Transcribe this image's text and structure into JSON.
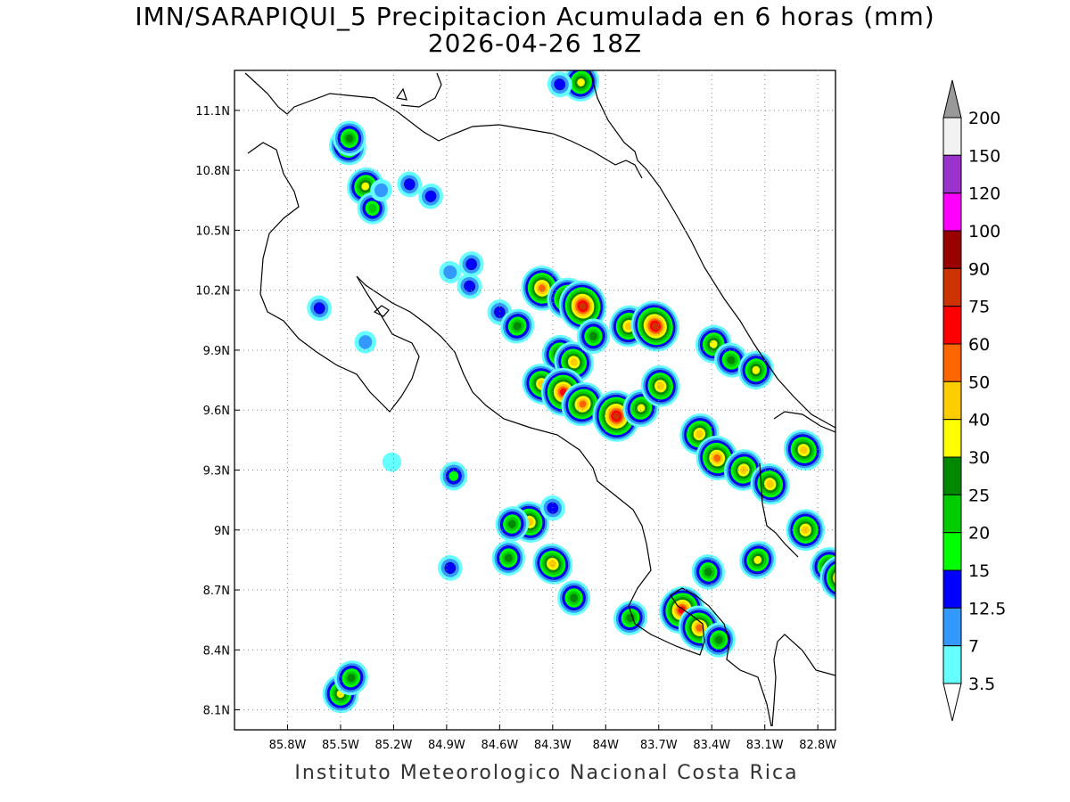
{
  "title_line1": "IMN/SARAPIQUI_5 Precipitacion Acumulada en 6 horas (mm)",
  "title_line2": "2026-04-26 18Z",
  "footer": "Instituto Meteorologico Nacional Costa Rica",
  "map": {
    "lon_range": [
      -86.1,
      -82.7
    ],
    "lat_range": [
      8.0,
      11.3
    ],
    "lon_ticks": [
      {
        "value": -85.8,
        "label": "85.8W"
      },
      {
        "value": -85.5,
        "label": "85.5W"
      },
      {
        "value": -85.2,
        "label": "85.2W"
      },
      {
        "value": -84.9,
        "label": "84.9W"
      },
      {
        "value": -84.6,
        "label": "84.6W"
      },
      {
        "value": -84.3,
        "label": "84.3W"
      },
      {
        "value": -84.0,
        "label": "84W"
      },
      {
        "value": -83.7,
        "label": "83.7W"
      },
      {
        "value": -83.4,
        "label": "83.4W"
      },
      {
        "value": -83.1,
        "label": "83.1W"
      },
      {
        "value": -82.8,
        "label": "82.8W"
      }
    ],
    "lat_ticks": [
      {
        "value": 8.1,
        "label": "8.1N"
      },
      {
        "value": 8.4,
        "label": "8.4N"
      },
      {
        "value": 8.7,
        "label": "8.7N"
      },
      {
        "value": 9.0,
        "label": "9N"
      },
      {
        "value": 9.3,
        "label": "9.3N"
      },
      {
        "value": 9.6,
        "label": "9.6N"
      },
      {
        "value": 9.9,
        "label": "9.9N"
      },
      {
        "value": 10.2,
        "label": "10.2N"
      },
      {
        "value": 10.5,
        "label": "10.5N"
      },
      {
        "value": 10.8,
        "label": "10.8N"
      },
      {
        "value": 11.1,
        "label": "11.1N"
      }
    ],
    "grid": "dotted"
  },
  "colorbar": {
    "levels": [
      "3.5",
      "7",
      "12.5",
      "15",
      "20",
      "25",
      "30",
      "40",
      "50",
      "60",
      "75",
      "90",
      "100",
      "120",
      "150",
      "200"
    ],
    "colors": [
      "#66ffff",
      "#3399ff",
      "#0000ff",
      "#00ff00",
      "#00cc00",
      "#008800",
      "#ffff00",
      "#ffcc00",
      "#ff6600",
      "#ff0000",
      "#cc3300",
      "#990000",
      "#ff00ff",
      "#9933cc",
      "#f2f2f2",
      "#999999"
    ]
  },
  "chart_data": {
    "type": "heatmap",
    "title": "IMN/SARAPIQUI_5 Precipitacion Acumulada en 6 horas (mm)",
    "subtitle": "2026-04-26 18Z",
    "units": "mm",
    "xlim": [
      -86.1,
      -82.7
    ],
    "ylim": [
      8.0,
      11.3
    ],
    "cells": [
      {
        "lon": -85.46,
        "lat": 10.92,
        "mm": 30
      },
      {
        "lon": -85.45,
        "lat": 10.96,
        "mm": 25
      },
      {
        "lon": -85.36,
        "lat": 10.72,
        "mm": 30
      },
      {
        "lon": -85.32,
        "lat": 10.61,
        "mm": 20
      },
      {
        "lon": -85.27,
        "lat": 10.7,
        "mm": 7
      },
      {
        "lon": -85.11,
        "lat": 10.73,
        "mm": 12.5
      },
      {
        "lon": -84.99,
        "lat": 10.67,
        "mm": 12.5
      },
      {
        "lon": -85.62,
        "lat": 10.11,
        "mm": 12.5
      },
      {
        "lon": -85.36,
        "lat": 9.94,
        "mm": 7
      },
      {
        "lon": -85.21,
        "lat": 9.34,
        "mm": 3.5
      },
      {
        "lon": -84.86,
        "lat": 9.27,
        "mm": 15
      },
      {
        "lon": -84.88,
        "lat": 10.29,
        "mm": 7
      },
      {
        "lon": -84.76,
        "lat": 10.33,
        "mm": 12.5
      },
      {
        "lon": -84.77,
        "lat": 10.22,
        "mm": 12.5
      },
      {
        "lon": -84.6,
        "lat": 10.09,
        "mm": 12.5
      },
      {
        "lon": -84.5,
        "lat": 10.02,
        "mm": 25
      },
      {
        "lon": -84.36,
        "lat": 10.21,
        "mm": 50
      },
      {
        "lon": -84.22,
        "lat": 10.16,
        "mm": 40
      },
      {
        "lon": -84.13,
        "lat": 10.12,
        "mm": 75
      },
      {
        "lon": -84.14,
        "lat": 11.24,
        "mm": 30
      },
      {
        "lon": -84.26,
        "lat": 11.23,
        "mm": 12.5
      },
      {
        "lon": -83.87,
        "lat": 10.02,
        "mm": 40
      },
      {
        "lon": -83.72,
        "lat": 10.02,
        "mm": 75
      },
      {
        "lon": -84.26,
        "lat": 9.88,
        "mm": 30
      },
      {
        "lon": -84.18,
        "lat": 9.84,
        "mm": 40
      },
      {
        "lon": -84.07,
        "lat": 9.97,
        "mm": 25
      },
      {
        "lon": -84.36,
        "lat": 9.73,
        "mm": 40
      },
      {
        "lon": -84.24,
        "lat": 9.69,
        "mm": 60
      },
      {
        "lon": -84.13,
        "lat": 9.63,
        "mm": 50
      },
      {
        "lon": -83.94,
        "lat": 9.57,
        "mm": 75
      },
      {
        "lon": -83.8,
        "lat": 9.61,
        "mm": 30
      },
      {
        "lon": -83.69,
        "lat": 9.72,
        "mm": 40
      },
      {
        "lon": -83.47,
        "lat": 9.48,
        "mm": 40
      },
      {
        "lon": -83.37,
        "lat": 9.36,
        "mm": 50
      },
      {
        "lon": -83.22,
        "lat": 9.3,
        "mm": 40
      },
      {
        "lon": -83.07,
        "lat": 9.23,
        "mm": 40
      },
      {
        "lon": -83.39,
        "lat": 9.93,
        "mm": 30
      },
      {
        "lon": -83.29,
        "lat": 9.85,
        "mm": 25
      },
      {
        "lon": -83.15,
        "lat": 9.8,
        "mm": 30
      },
      {
        "lon": -82.88,
        "lat": 9.4,
        "mm": 40
      },
      {
        "lon": -82.87,
        "lat": 9.0,
        "mm": 40
      },
      {
        "lon": -82.74,
        "lat": 8.82,
        "mm": 30
      },
      {
        "lon": -82.67,
        "lat": 8.76,
        "mm": 50
      },
      {
        "lon": -83.14,
        "lat": 8.85,
        "mm": 30
      },
      {
        "lon": -83.42,
        "lat": 8.79,
        "mm": 25
      },
      {
        "lon": -83.57,
        "lat": 8.6,
        "mm": 60
      },
      {
        "lon": -83.47,
        "lat": 8.51,
        "mm": 50
      },
      {
        "lon": -83.36,
        "lat": 8.45,
        "mm": 25
      },
      {
        "lon": -84.43,
        "lat": 9.04,
        "mm": 40
      },
      {
        "lon": -84.53,
        "lat": 9.03,
        "mm": 25
      },
      {
        "lon": -84.3,
        "lat": 9.11,
        "mm": 12.5
      },
      {
        "lon": -84.55,
        "lat": 8.86,
        "mm": 25
      },
      {
        "lon": -84.3,
        "lat": 8.83,
        "mm": 40
      },
      {
        "lon": -84.18,
        "lat": 8.66,
        "mm": 25
      },
      {
        "lon": -83.86,
        "lat": 8.56,
        "mm": 25
      },
      {
        "lon": -85.5,
        "lat": 8.18,
        "mm": 30
      },
      {
        "lon": -85.44,
        "lat": 8.26,
        "mm": 25
      },
      {
        "lon": -84.88,
        "lat": 8.81,
        "mm": 12.5
      }
    ]
  }
}
